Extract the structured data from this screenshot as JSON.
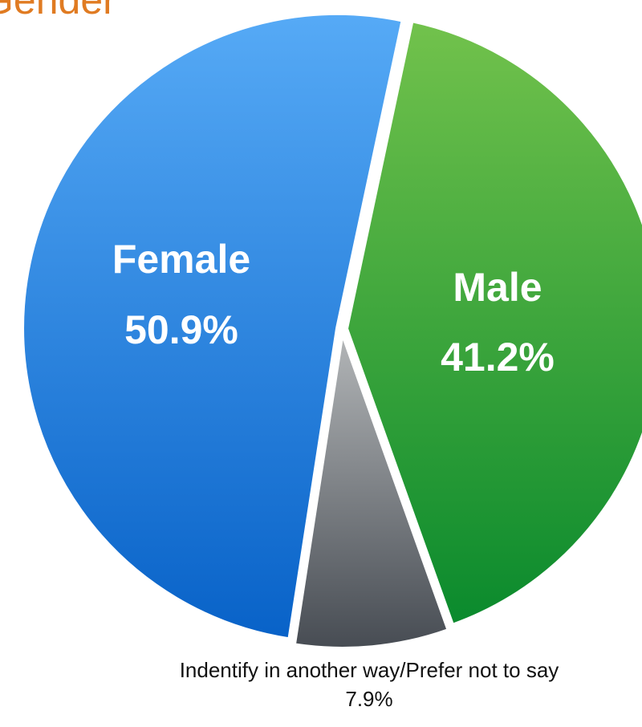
{
  "chart_data": {
    "type": "pie",
    "title": "Gender",
    "categories": [
      "Male",
      "Indentify in another way/Prefer not to say",
      "Female"
    ],
    "values": [
      41.2,
      7.9,
      50.9
    ],
    "value_labels": [
      "41.2%",
      "7.9%",
      "50.9%"
    ],
    "colors": [
      [
        "#72c24c",
        "#0a8a2d"
      ],
      [
        "#b3b6b8",
        "#474c53"
      ],
      [
        "#56aaf6",
        "#0862c8"
      ]
    ]
  }
}
